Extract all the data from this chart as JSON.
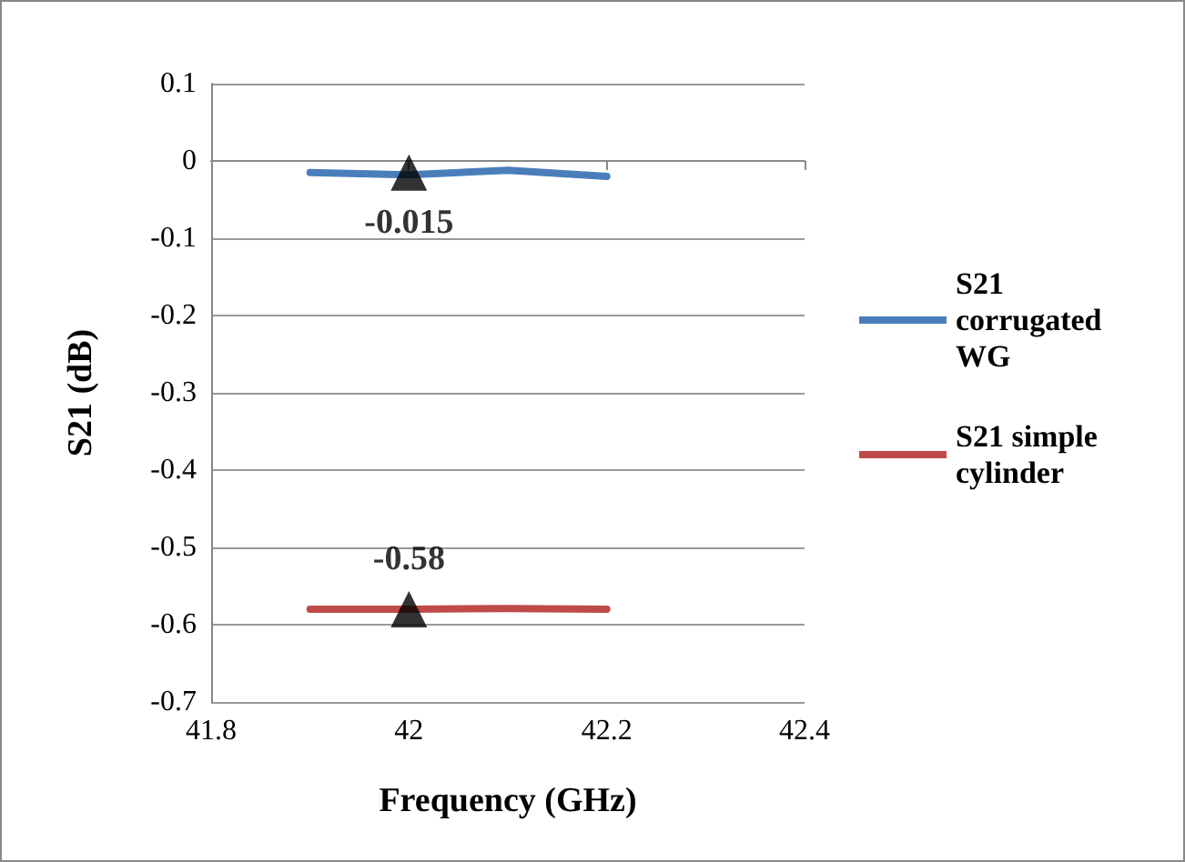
{
  "chart_data": {
    "type": "line",
    "xlabel": "Frequency (GHz)",
    "ylabel": "S21 (dB)",
    "x": [
      41.9,
      42.0,
      42.1,
      42.2
    ],
    "series": [
      {
        "name": "S21 corrugated WG",
        "color": "#4a7ebb",
        "values": [
          -0.015,
          -0.018,
          -0.012,
          -0.02
        ]
      },
      {
        "name": "S21 simple cylinder",
        "color": "#be4b48",
        "values": [
          -0.58,
          -0.58,
          -0.579,
          -0.58
        ]
      }
    ],
    "xlim": [
      41.8,
      42.4
    ],
    "xticks": [
      41.8,
      42,
      42.2,
      42.4
    ],
    "ylim": [
      -0.7,
      0.1
    ],
    "yticks": [
      -0.7,
      -0.6,
      -0.5,
      -0.4,
      -0.3,
      -0.2,
      -0.1,
      0,
      0.1
    ],
    "annotations": [
      {
        "text": "-0.015",
        "x": 42,
        "y": -0.015
      },
      {
        "text": "-0.58",
        "x": 42,
        "y": -0.58
      }
    ],
    "grid": "y",
    "legend": "right",
    "marker": "none",
    "line_style": "solid"
  }
}
